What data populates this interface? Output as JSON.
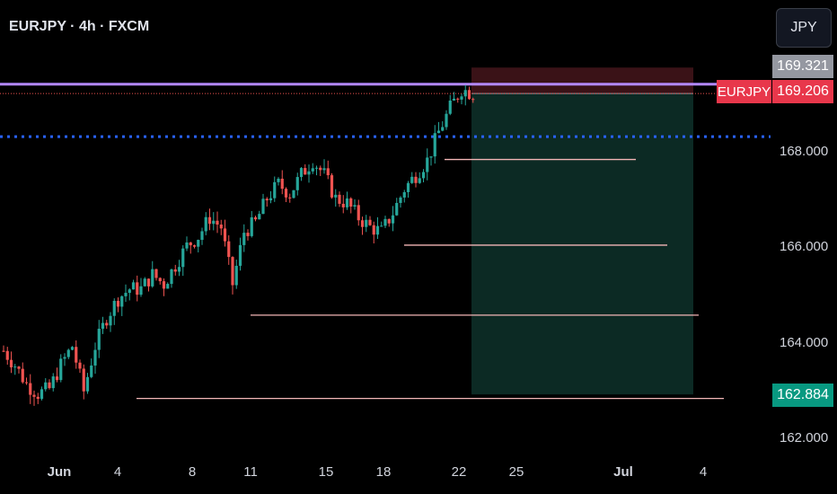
{
  "header": {
    "symbol_title": "EURJPY · 4h · FXCM"
  },
  "currency_button": "JPY",
  "price_tags": {
    "top": "169.321",
    "current_symbol": "EURJPY",
    "current": "169.206",
    "target": "162.884"
  },
  "colors": {
    "up": "#26a69a",
    "down": "#ef5350",
    "purple_line": "#b388ff",
    "blue_dotted": "#2962ff",
    "level_line": "#f3b6b6",
    "profit_zone": "#0c2a24",
    "loss_zone": "#3a1217"
  },
  "chart_data": {
    "type": "candlestick",
    "title": "",
    "y_ticks": [
      "168.000",
      "166.000",
      "164.000",
      "162.000"
    ],
    "x_ticks": [
      "Jun",
      "4",
      "8",
      "11",
      "15",
      "18",
      "22",
      "25",
      "Jul",
      "4"
    ],
    "ylim": [
      161.6,
      170.2
    ],
    "price_lines": {
      "purple_resistance": 169.4,
      "current_price": 169.206,
      "blue_dotted": 168.3
    },
    "horizontal_levels": [
      {
        "price": 167.82,
        "from": "21",
        "to": "30"
      },
      {
        "price": 166.02,
        "from": "19",
        "to": "31"
      },
      {
        "price": 164.55,
        "from": "11",
        "to": "33"
      },
      {
        "price": 162.8,
        "from": "5",
        "to": "34"
      }
    ],
    "position": {
      "entry": 169.206,
      "stop": 169.75,
      "target": 162.884,
      "start": "22",
      "end": "Jul 3"
    },
    "trend": [
      [
        0,
        163.8
      ],
      [
        1,
        163.5
      ],
      [
        2,
        163.1
      ],
      [
        3,
        162.9
      ],
      [
        4,
        163.0
      ],
      [
        5,
        163.5
      ],
      [
        6,
        163.9
      ],
      [
        7,
        162.95
      ],
      [
        8,
        163.9
      ],
      [
        9,
        164.5
      ],
      [
        10,
        164.9
      ],
      [
        11,
        165.1
      ],
      [
        12,
        165.1
      ],
      [
        13,
        165.4
      ],
      [
        14,
        165.2
      ],
      [
        15,
        165.6
      ],
      [
        16,
        166.0
      ],
      [
        17,
        166.2
      ],
      [
        18,
        166.6
      ],
      [
        19,
        166.4
      ],
      [
        20,
        165.2
      ],
      [
        21,
        166.3
      ],
      [
        22,
        166.5
      ],
      [
        23,
        167.0
      ],
      [
        24,
        167.3
      ],
      [
        25,
        167.1
      ],
      [
        26,
        167.5
      ],
      [
        27,
        167.8
      ],
      [
        28,
        167.5
      ],
      [
        29,
        167.0
      ],
      [
        30,
        166.9
      ],
      [
        31,
        166.6
      ],
      [
        32,
        166.4
      ],
      [
        33,
        166.3
      ],
      [
        34,
        166.7
      ],
      [
        35,
        167.2
      ],
      [
        36,
        167.5
      ],
      [
        37,
        167.8
      ],
      [
        38,
        168.4
      ],
      [
        39,
        168.9
      ],
      [
        40,
        169.3
      ],
      [
        41,
        169.2
      ]
    ]
  }
}
